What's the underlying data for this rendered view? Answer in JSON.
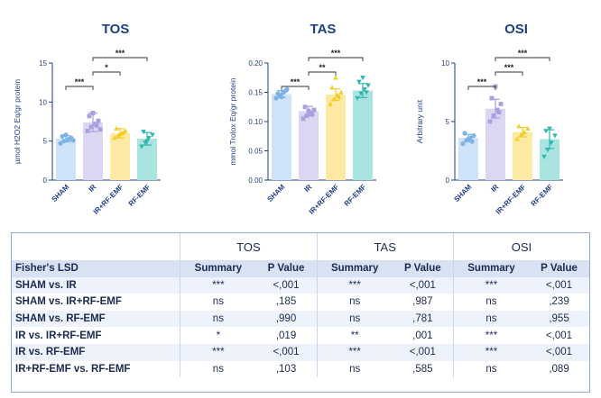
{
  "colors": {
    "SHAM": {
      "fill": "#cfe3f8",
      "dot": "#7fb3e6"
    },
    "IR": {
      "fill": "#dcd6f3",
      "dot": "#a9a0e0"
    },
    "IR+RF-EMF": {
      "fill": "#fbe9a4",
      "dot": "#f4cf2c"
    },
    "RF-EMF": {
      "fill": "#a9e4e0",
      "dot": "#31b7ad"
    },
    "axis": "#1f3e87",
    "title": "#1f3e87"
  },
  "chart_data": [
    {
      "type": "bar",
      "title": "TOS",
      "ylabel": "µmol H2O2 Eq/gr protein",
      "categories": [
        "SHAM",
        "IR",
        "IR+RF-EMF",
        "RF-EMF"
      ],
      "values": [
        5.3,
        7.4,
        6.0,
        5.3
      ],
      "errors": [
        0.4,
        1.2,
        0.6,
        0.8
      ],
      "points": [
        [
          4.7,
          5.0,
          5.2,
          5.4,
          5.6,
          5.8,
          5.3,
          5.1
        ],
        [
          6.3,
          6.8,
          7.2,
          7.6,
          8.2,
          8.6,
          7.0,
          6.5
        ],
        [
          5.4,
          5.7,
          6.0,
          6.3,
          6.6,
          5.9,
          6.1
        ],
        [
          4.3,
          4.8,
          5.4,
          5.8,
          6.2,
          5.0
        ]
      ],
      "ylim": [
        0,
        15
      ],
      "yticks": [
        0,
        5,
        10,
        15
      ],
      "significance": [
        {
          "from": 0,
          "to": 1,
          "label": "***"
        },
        {
          "from": 1,
          "to": 2,
          "label": "*"
        },
        {
          "from": 1,
          "to": 3,
          "label": "***"
        }
      ]
    },
    {
      "type": "bar",
      "title": "TAS",
      "ylabel": "mmol Trolox Eq/gr protein",
      "categories": [
        "SHAM",
        "IR",
        "IR+RF-EMF",
        "RF-EMF"
      ],
      "values": [
        0.147,
        0.118,
        0.146,
        0.153
      ],
      "errors": [
        0.006,
        0.008,
        0.01,
        0.012
      ],
      "points": [
        [
          0.14,
          0.145,
          0.15,
          0.155,
          0.148,
          0.142,
          0.152
        ],
        [
          0.105,
          0.11,
          0.115,
          0.12,
          0.125,
          0.118,
          0.112
        ],
        [
          0.13,
          0.138,
          0.145,
          0.15,
          0.158,
          0.175,
          0.142
        ],
        [
          0.14,
          0.148,
          0.155,
          0.162,
          0.168,
          0.175,
          0.15
        ]
      ],
      "ylim": [
        0,
        0.2
      ],
      "yticks": [
        0.0,
        0.05,
        0.1,
        0.15,
        0.2
      ],
      "significance": [
        {
          "from": 0,
          "to": 1,
          "label": "***"
        },
        {
          "from": 1,
          "to": 2,
          "label": "**"
        },
        {
          "from": 1,
          "to": 3,
          "label": "***"
        }
      ]
    },
    {
      "type": "bar",
      "title": "OSI",
      "ylabel": "Arbitrary unit",
      "categories": [
        "SHAM",
        "IR",
        "IR+RF-EMF",
        "RF-EMF"
      ],
      "values": [
        3.6,
        6.1,
        4.1,
        3.5
      ],
      "errors": [
        0.3,
        0.8,
        0.4,
        0.8
      ],
      "points": [
        [
          3.1,
          3.4,
          3.6,
          3.8,
          4.0,
          3.5,
          3.3
        ],
        [
          5.0,
          5.5,
          6.0,
          6.5,
          7.0,
          8.0,
          5.8
        ],
        [
          3.5,
          3.8,
          4.1,
          4.4,
          4.6,
          4.0
        ],
        [
          2.0,
          2.6,
          3.2,
          3.8,
          4.2,
          4.4
        ]
      ],
      "ylim": [
        0,
        10
      ],
      "yticks": [
        0,
        5,
        10
      ],
      "significance": [
        {
          "from": 0,
          "to": 1,
          "label": "***"
        },
        {
          "from": 1,
          "to": 2,
          "label": "***"
        },
        {
          "from": 1,
          "to": 3,
          "label": "***"
        }
      ]
    }
  ],
  "table": {
    "groups": [
      "TOS",
      "TAS",
      "OSI"
    ],
    "first_header": "Fisher's LSD",
    "sub_headers": [
      "Summary",
      "P Value"
    ],
    "rows": [
      {
        "label": "SHAM vs. IR",
        "cells": [
          "***",
          "<,001",
          "***",
          "<,001",
          "***",
          "<,001"
        ]
      },
      {
        "label": "SHAM vs. IR+RF-EMF",
        "cells": [
          "ns",
          ",185",
          "ns",
          ",987",
          "ns",
          ",239"
        ]
      },
      {
        "label": "SHAM vs. RF-EMF",
        "cells": [
          "ns",
          ",990",
          "ns",
          ",781",
          "ns",
          ",955"
        ]
      },
      {
        "label": "IR vs. IR+RF-EMF",
        "cells": [
          "*",
          ",019",
          "**",
          ",001",
          "***",
          "<,001"
        ]
      },
      {
        "label": "IR vs. RF-EMF",
        "cells": [
          "***",
          "<,001",
          "***",
          "<,001",
          "***",
          "<,001"
        ]
      },
      {
        "label": "IR+RF-EMF vs. RF-EMF",
        "cells": [
          "ns",
          ",103",
          "ns",
          ",585",
          "ns",
          ",089"
        ]
      }
    ]
  }
}
